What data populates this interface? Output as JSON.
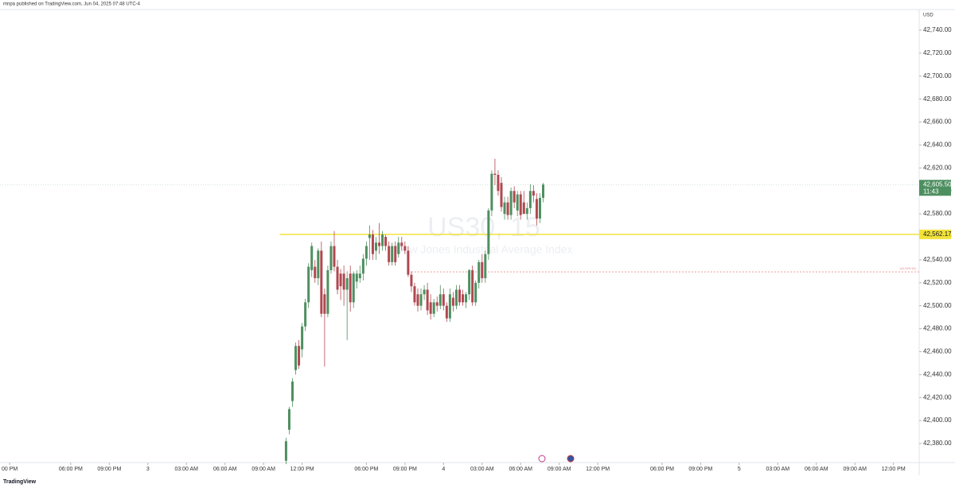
{
  "header": "mnpa published on TradingView.com, Jun 04, 2025 07:48 UTC-4",
  "footer": "TradingView",
  "chart_data": {
    "type": "candlestick",
    "watermark": "US30, 15",
    "watermark_sub": "Dow Jones Industrial Average Index",
    "currency": "USD",
    "up_color": "#4e8f60",
    "down_color": "#b04850",
    "x": [
      86,
      87,
      88,
      89,
      90,
      91,
      92,
      93,
      94,
      95,
      96,
      97,
      98,
      99,
      100,
      101,
      102,
      103,
      104,
      105,
      106,
      107,
      108,
      109,
      110,
      111,
      112,
      113,
      114,
      115,
      116,
      117,
      118,
      119,
      120,
      121,
      122,
      123,
      124,
      125,
      126,
      127,
      128,
      129,
      130,
      131,
      132,
      133,
      134,
      135,
      136,
      137,
      138,
      139,
      140,
      141,
      142,
      143,
      144,
      145,
      146,
      147,
      148,
      149,
      150,
      151,
      152,
      153,
      154,
      155,
      156,
      157,
      158,
      159,
      160,
      161,
      162,
      163,
      164,
      165,
      166
    ],
    "open": [
      42365,
      42392,
      42417,
      42444,
      42465,
      42462,
      42482,
      42503,
      42531,
      42534,
      42524,
      42548,
      42510,
      42493,
      42531,
      42552,
      42534,
      42528,
      42528,
      42514,
      42528,
      42503,
      42521,
      42524,
      42528,
      42541,
      42559,
      42562,
      42548,
      42555,
      42552,
      42560,
      42552,
      42538,
      42552,
      42545,
      42555,
      42552,
      42548,
      42527,
      42517,
      42510,
      42500,
      42510,
      42514,
      42503,
      42493,
      42503,
      42500,
      42510,
      42500,
      42489,
      42507,
      42500,
      42514,
      42510,
      42503,
      42510,
      42531,
      42503,
      42520,
      42538,
      42524,
      42545,
      42583,
      42615,
      42614,
      42607,
      42580,
      42590,
      42579,
      42600,
      42583,
      42597,
      42590,
      42580,
      42585,
      42600,
      42593,
      42576,
      42594
    ],
    "high": [
      42385,
      42412,
      42437,
      42468,
      42470,
      42485,
      42506,
      42537,
      42555,
      42540,
      42550,
      42556,
      42515,
      42535,
      42556,
      42565,
      42540,
      42532,
      42535,
      42530,
      42535,
      42530,
      42531,
      42535,
      42545,
      42556,
      42570,
      42566,
      42560,
      42572,
      42565,
      42562,
      42556,
      42555,
      42556,
      42560,
      42560,
      42556,
      42552,
      42530,
      42520,
      42515,
      42515,
      42518,
      42520,
      42510,
      42506,
      42508,
      42518,
      42515,
      42503,
      42515,
      42512,
      42518,
      42518,
      42514,
      42512,
      42532,
      42535,
      42522,
      42540,
      42545,
      42548,
      42585,
      42618,
      42628,
      42618,
      42612,
      42595,
      42595,
      42603,
      42604,
      42600,
      42600,
      42600,
      42590,
      42606,
      42605,
      42598,
      42598,
      42607
    ],
    "low": [
      42362,
      42388,
      42412,
      42440,
      42445,
      42455,
      42478,
      42498,
      42525,
      42520,
      42518,
      42490,
      42447,
      42490,
      42528,
      42530,
      42510,
      42505,
      42500,
      42470,
      42495,
      42498,
      42515,
      42520,
      42522,
      42535,
      42540,
      42540,
      42540,
      42545,
      42548,
      42548,
      42535,
      42535,
      42535,
      42542,
      42548,
      42545,
      42525,
      42512,
      42500,
      42495,
      42496,
      42505,
      42492,
      42488,
      42490,
      42495,
      42497,
      42496,
      42486,
      42486,
      42495,
      42497,
      42500,
      42500,
      42498,
      42505,
      42500,
      42500,
      42515,
      42520,
      42520,
      42540,
      42578,
      42605,
      42596,
      42582,
      42575,
      42575,
      42575,
      42585,
      42578,
      42575,
      42580,
      42575,
      42580,
      42590,
      42570,
      42572,
      42590
    ],
    "close": [
      42382,
      42410,
      42434,
      42465,
      42448,
      42482,
      42503,
      42534,
      42552,
      42524,
      42548,
      42493,
      42493,
      42531,
      42552,
      42534,
      42514,
      42517,
      42514,
      42524,
      42503,
      42528,
      42528,
      42528,
      42541,
      42552,
      42562,
      42545,
      42555,
      42552,
      42562,
      42552,
      42538,
      42552,
      42538,
      42555,
      42552,
      42548,
      42527,
      42517,
      42503,
      42500,
      42510,
      42514,
      42496,
      42493,
      42503,
      42500,
      42510,
      42500,
      42489,
      42510,
      42500,
      42514,
      42503,
      42503,
      42510,
      42531,
      42503,
      42520,
      42538,
      42524,
      42545,
      42583,
      42615,
      42614,
      42600,
      42586,
      42590,
      42579,
      42600,
      42590,
      42597,
      42579,
      42580,
      42585,
      42600,
      42596,
      42576,
      42594,
      42605.5
    ],
    "xlim": [
      -3,
      283
    ],
    "xticks": [
      {
        "value": 0,
        "label": "00 PM"
      },
      {
        "value": 19,
        "label": "06:00 PM"
      },
      {
        "value": 31,
        "label": "09:00 PM"
      },
      {
        "value": 43,
        "label": "3"
      },
      {
        "value": 55,
        "label": "03:00 AM"
      },
      {
        "value": 67,
        "label": "06:00 AM"
      },
      {
        "value": 79,
        "label": "09:00 AM"
      },
      {
        "value": 91,
        "label": "12:00 PM"
      },
      {
        "value": 111,
        "label": "06:00 PM"
      },
      {
        "value": 123,
        "label": "09:00 PM"
      },
      {
        "value": 135,
        "label": "4"
      },
      {
        "value": 147,
        "label": "03:00 AM"
      },
      {
        "value": 159,
        "label": "06:00 AM"
      },
      {
        "value": 171,
        "label": "09:00 AM"
      },
      {
        "value": 183,
        "label": "12:00 PM"
      },
      {
        "value": 203,
        "label": "06:00 PM"
      },
      {
        "value": 215,
        "label": "09:00 PM"
      },
      {
        "value": 227,
        "label": "5"
      },
      {
        "value": 239,
        "label": "03:00 AM"
      },
      {
        "value": 251,
        "label": "06:00 AM"
      },
      {
        "value": 263,
        "label": "09:00 AM"
      },
      {
        "value": 275,
        "label": "12:00 PM"
      }
    ],
    "ylim": [
      42363.4,
      42758
    ],
    "yticks": [
      {
        "value": 42380,
        "label": "42,380.00"
      },
      {
        "value": 42400,
        "label": "42,400.00"
      },
      {
        "value": 42420,
        "label": "42,420.00"
      },
      {
        "value": 42440,
        "label": "42,440.00"
      },
      {
        "value": 42460,
        "label": "42,460.00"
      },
      {
        "value": 42480,
        "label": "42,480.00"
      },
      {
        "value": 42500,
        "label": "42,500.00"
      },
      {
        "value": 42520,
        "label": "42,520.00"
      },
      {
        "value": 42540,
        "label": "42,540.00"
      },
      {
        "value": 42560,
        "label": "42,560.00"
      },
      {
        "value": 42580,
        "label": "42,580.00"
      },
      {
        "value": 42600,
        "label": "42,600.00"
      },
      {
        "value": 42620,
        "label": "42,620.00"
      },
      {
        "value": 42640,
        "label": "42,640.00"
      },
      {
        "value": 42660,
        "label": "42,660.00"
      },
      {
        "value": 42680,
        "label": "42,680.00"
      },
      {
        "value": 42700,
        "label": "42,700.00"
      },
      {
        "value": 42720,
        "label": "42,720.00"
      },
      {
        "value": 42740,
        "label": "42,740.00"
      }
    ],
    "price_lines": [
      {
        "value": 42562.17,
        "label": "42,562.17",
        "color": "#f2e33a",
        "from": 84
      },
      {
        "value": 42529.5,
        "label": "(42,529.50)",
        "color": "#e88a8a",
        "from": 125
      }
    ],
    "last_price": {
      "value": 42605.5,
      "label": "42,605.50",
      "countdown": "11:43",
      "color": "#4e8f60"
    }
  }
}
